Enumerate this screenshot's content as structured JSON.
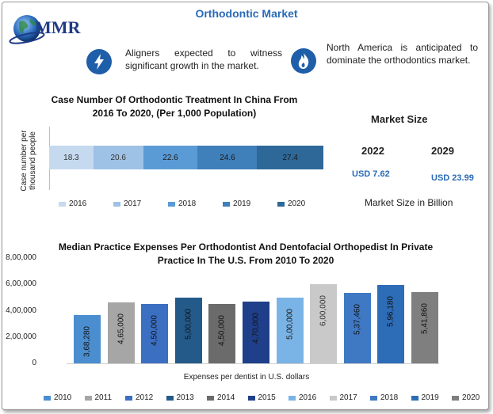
{
  "header": {
    "title": "Orthodontic Market",
    "logo_text": "MMR"
  },
  "highlights": [
    {
      "icon": "lightning-icon",
      "text": "Aligners expected to witness significant growth in the market."
    },
    {
      "icon": "flame-icon",
      "text": "North America is anticipated to dominate the orthodontics market."
    }
  ],
  "market_size": {
    "title": "Market Size",
    "years": [
      "2022",
      "2029"
    ],
    "values": [
      "USD 7.62",
      "USD 23.99"
    ],
    "caption": "Market Size in Billion"
  },
  "colors": {
    "accent": "#2a6ab8",
    "series": [
      "#c5d9ef",
      "#9ec2e6",
      "#5b9bd5",
      "#3f7fba",
      "#2e6898"
    ]
  },
  "chart_data": [
    {
      "type": "bar",
      "orientation": "horizontal-stacked",
      "title": "Case Number Of Orthodontic Treatment In China From 2016 To 2020, (Per 1,000 Population)",
      "ylabel": "Case number per thousand people",
      "series": [
        {
          "name": "2016",
          "values": [
            18.3
          ],
          "color": "#c5d9ef"
        },
        {
          "name": "2017",
          "values": [
            20.6
          ],
          "color": "#9ec2e6"
        },
        {
          "name": "2018",
          "values": [
            22.6
          ],
          "color": "#5b9bd5"
        },
        {
          "name": "2019",
          "values": [
            24.6
          ],
          "color": "#3f7fba"
        },
        {
          "name": "2020",
          "values": [
            27.4
          ],
          "color": "#2e6898"
        }
      ],
      "legend": "bottom"
    },
    {
      "type": "bar",
      "title": "Median Practice Expenses Per Orthodontist And Dentofacial Orthopedist In Private Practice In The U.S. From 2010 To 2020",
      "xlabel": "Expenses per dentist in U.S. dollars",
      "ylim": [
        0,
        800000
      ],
      "yticks": [
        "0",
        "2,00,000",
        "4,00,000",
        "6,00,000",
        "8,00,000"
      ],
      "categories": [
        "2010",
        "2011",
        "2012",
        "2013",
        "2014",
        "2015",
        "2016",
        "2017",
        "2018",
        "2019",
        "2020"
      ],
      "values": [
        368280,
        465000,
        450000,
        500000,
        450000,
        470000,
        500000,
        600000,
        537460,
        596180,
        541860
      ],
      "labels": [
        "3,68,280",
        "4,65,000",
        "4,50,000",
        "5,00,000",
        "4,50,000",
        "4,70,000",
        "5,00,000",
        "6,00,000",
        "5,37,460",
        "5,96,180",
        "5,41,860"
      ],
      "colors": [
        "#4a8ed0",
        "#a6a6a6",
        "#3b6fc2",
        "#245a8a",
        "#6b6b6b",
        "#203f8a",
        "#7ab4e6",
        "#c9c9c9",
        "#3f79c4",
        "#2d6db8",
        "#7f7f7f"
      ],
      "legend": "bottom"
    }
  ]
}
